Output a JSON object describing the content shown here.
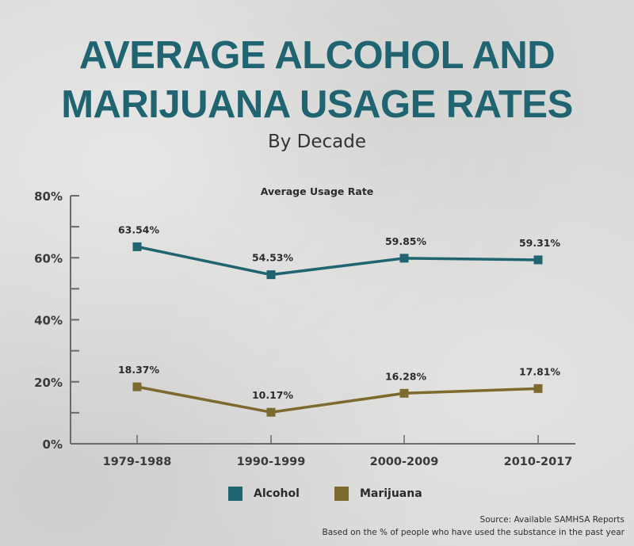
{
  "header": {
    "title_line1": "AVERAGE ALCOHOL AND",
    "title_line2": "MARIJUANA USAGE RATES",
    "subtitle": "By Decade"
  },
  "colors": {
    "title": "#1f6470",
    "alcohol": "#1f6470",
    "marijuana": "#7d6a2f",
    "axis": "#6a6a6a",
    "text": "#2b2b2b"
  },
  "chart_data": {
    "type": "line",
    "title": "Average Usage Rate",
    "xlabel": "",
    "ylabel": "",
    "categories": [
      "1979-1988",
      "1990-1999",
      "2000-2009",
      "2010-2017"
    ],
    "series": [
      {
        "name": "Alcohol",
        "values": [
          63.54,
          54.53,
          59.85,
          59.31
        ],
        "labels": [
          "63.54%",
          "54.53%",
          "59.85%",
          "59.31%"
        ]
      },
      {
        "name": "Marijuana",
        "values": [
          18.37,
          10.17,
          16.28,
          17.81
        ],
        "labels": [
          "18.37%",
          "10.17%",
          "16.28%",
          "17.81%"
        ]
      }
    ],
    "ylim": [
      0,
      80
    ],
    "yticks": [
      0,
      20,
      40,
      60,
      80
    ],
    "ytick_labels": [
      "0%",
      "20%",
      "40%",
      "60%",
      "80%"
    ],
    "yminor_ticks": [
      10,
      30,
      50,
      70
    ],
    "grid": false,
    "legend_position": "bottom-center"
  },
  "legend": {
    "items": [
      {
        "label": "Alcohol"
      },
      {
        "label": "Marijuana"
      }
    ]
  },
  "footer": {
    "source": "Source: Available SAMHSA Reports",
    "note": "Based on the % of people who have used the substance in the past year"
  }
}
